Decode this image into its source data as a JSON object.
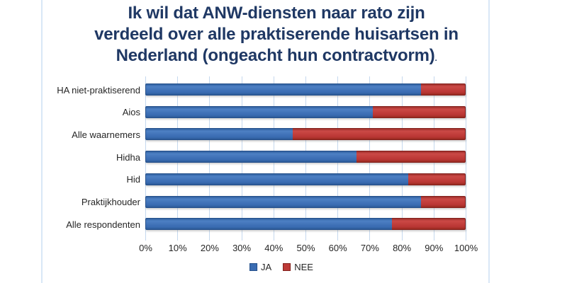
{
  "title": {
    "lines": [
      "Ik wil dat ANW-diensten naar rato zijn",
      "verdeeld over alle praktiserende huisartsen in",
      "Nederland (ongeacht hun contractvorm)"
    ],
    "suffix": ".",
    "color": "#1f3864"
  },
  "chart_data": {
    "type": "bar",
    "orientation": "horizontal",
    "stacked": true,
    "categories": [
      "HA niet-praktiserend",
      "Aios",
      "Alle waarnemers",
      "Hidha",
      "Hid",
      "Praktijkhouder",
      "Alle respondenten"
    ],
    "series": [
      {
        "name": "JA",
        "color": "#3a6cb2",
        "values": [
          86,
          71,
          46,
          66,
          82,
          86,
          77
        ]
      },
      {
        "name": "NEE",
        "color": "#bd3a37",
        "values": [
          14,
          29,
          54,
          34,
          18,
          14,
          23
        ]
      }
    ],
    "x_ticks": [
      "0%",
      "10%",
      "20%",
      "30%",
      "40%",
      "50%",
      "60%",
      "70%",
      "80%",
      "90%",
      "100%"
    ],
    "xlim": [
      0,
      100
    ],
    "grid": true,
    "gridline_color": "#c5d8ee",
    "legend_position": "bottom"
  }
}
